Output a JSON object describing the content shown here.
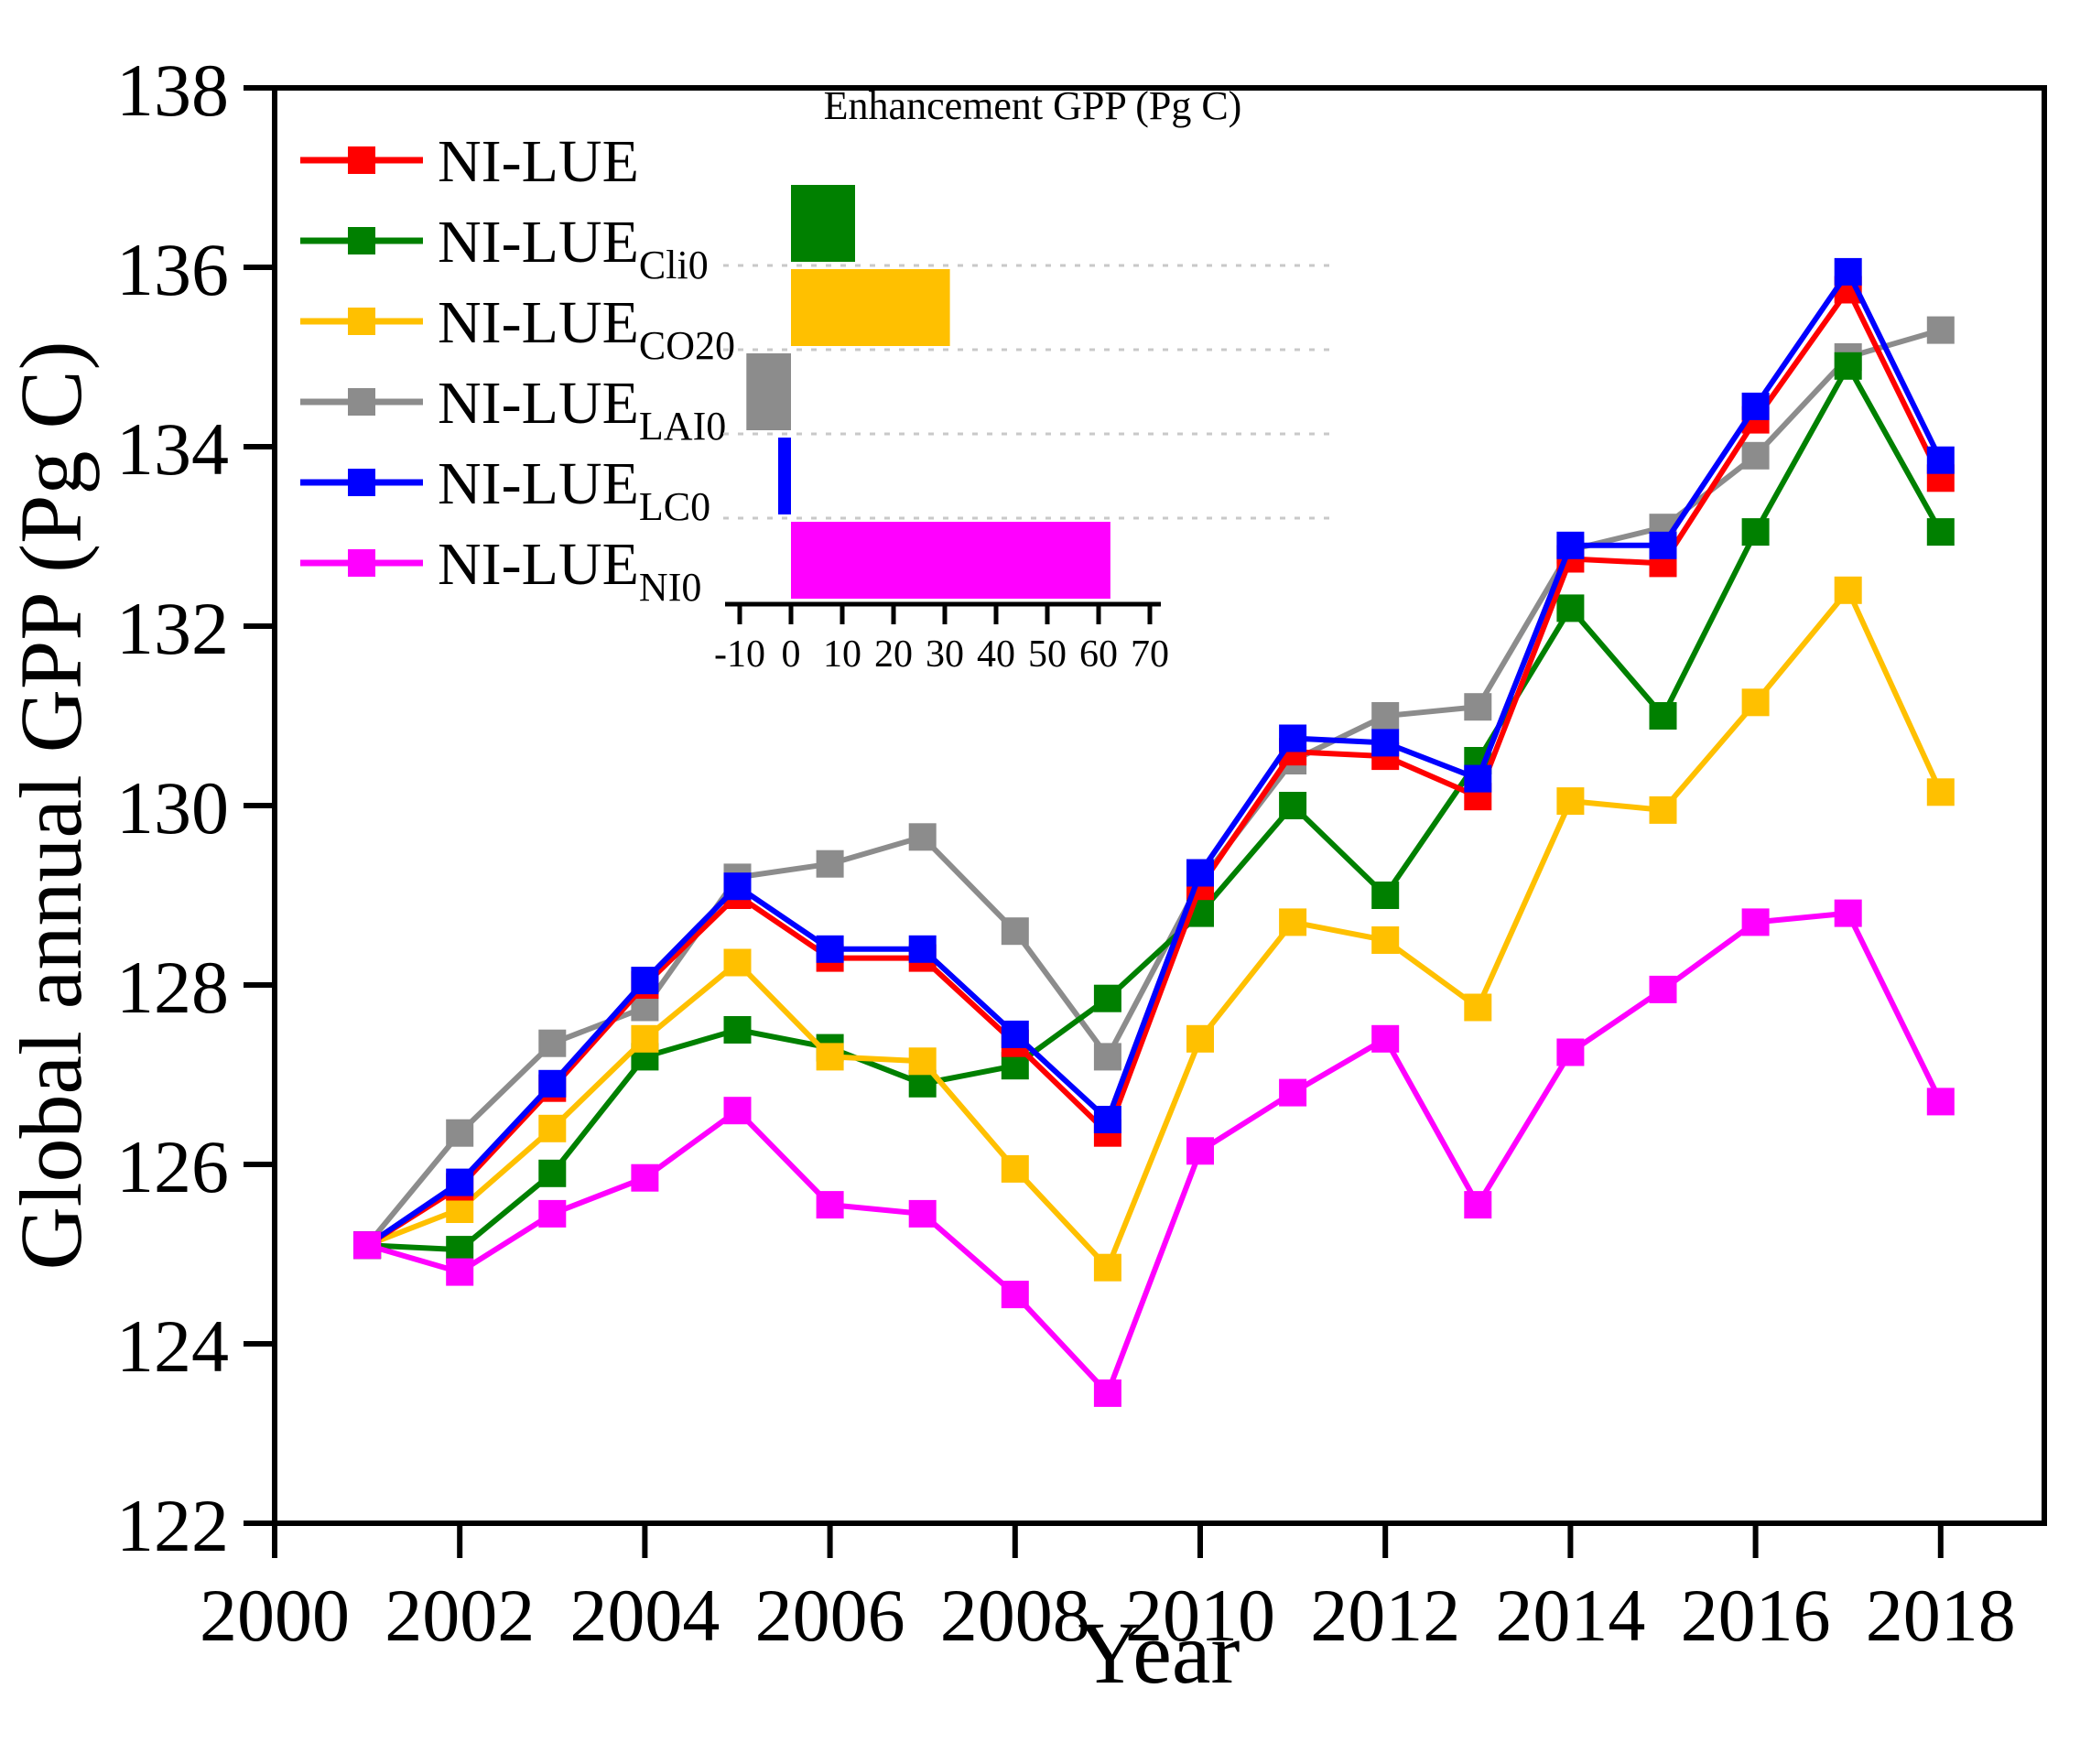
{
  "figure": {
    "x_label": "Year",
    "y_label": "Global annual GPP (Pg C)",
    "inset_title": "Enhancement GPP (Pg C)"
  },
  "colors": {
    "red": "#FF0000",
    "green": "#008000",
    "gold": "#FFC000",
    "gray": "#8C8C8C",
    "blue": "#0000FF",
    "magenta": "#FF00FF",
    "axis": "#000000",
    "inset_separator": "#c9c9c9"
  },
  "chart_data": {
    "type": "line",
    "title": "",
    "xlabel": "Year",
    "ylabel": "Global annual GPP (Pg C)",
    "x": [
      2001,
      2002,
      2003,
      2004,
      2005,
      2006,
      2007,
      2008,
      2009,
      2010,
      2011,
      2012,
      2013,
      2014,
      2015,
      2016,
      2017,
      2018
    ],
    "xlim": [
      2000,
      2019.1
    ],
    "ylim": [
      122,
      138
    ],
    "x_ticks": [
      2000,
      2002,
      2004,
      2006,
      2008,
      2010,
      2012,
      2014,
      2016,
      2018
    ],
    "y_ticks": [
      122,
      124,
      126,
      128,
      130,
      132,
      134,
      136,
      138
    ],
    "grid": false,
    "legend_position": "upper-left-inside",
    "series": [
      {
        "name": "NI-LUE",
        "sub": "",
        "color": "red",
        "values": [
          125.1,
          125.75,
          126.85,
          128.0,
          129.0,
          128.3,
          128.3,
          127.35,
          126.35,
          129.1,
          130.6,
          130.55,
          130.1,
          132.75,
          132.7,
          134.3,
          135.75,
          133.65
        ]
      },
      {
        "name": "NI-LUE",
        "sub": "Cli0",
        "color": "green",
        "values": [
          125.1,
          125.05,
          125.9,
          127.2,
          127.5,
          127.3,
          126.9,
          127.1,
          127.85,
          128.8,
          130.0,
          129.0,
          130.5,
          132.2,
          131.0,
          133.05,
          134.9,
          133.05
        ]
      },
      {
        "name": "NI-LUE",
        "sub": "CO20",
        "color": "gold",
        "values": [
          125.1,
          125.5,
          126.4,
          127.4,
          128.25,
          127.2,
          127.15,
          125.95,
          124.85,
          127.4,
          128.7,
          128.5,
          127.75,
          130.05,
          129.95,
          131.15,
          132.4,
          130.15
        ]
      },
      {
        "name": "NI-LUE",
        "sub": "LAI0",
        "color": "gray",
        "values": [
          125.1,
          126.35,
          127.35,
          127.75,
          129.2,
          129.35,
          129.65,
          128.6,
          127.2,
          129.15,
          130.5,
          131.0,
          131.1,
          132.85,
          133.1,
          133.9,
          135.0,
          135.3
        ]
      },
      {
        "name": "NI-LUE",
        "sub": "LC0",
        "color": "blue",
        "values": [
          125.1,
          125.8,
          126.9,
          128.05,
          129.1,
          128.4,
          128.4,
          127.45,
          126.5,
          129.25,
          130.75,
          130.7,
          130.3,
          132.9,
          132.9,
          134.45,
          135.95,
          133.85
        ]
      },
      {
        "name": "NI-LUE",
        "sub": "NI0",
        "color": "magenta",
        "values": [
          125.1,
          124.8,
          125.45,
          125.85,
          126.6,
          125.55,
          125.45,
          124.55,
          123.45,
          126.15,
          126.8,
          127.4,
          125.55,
          127.25,
          127.95,
          128.7,
          128.8,
          126.7
        ]
      }
    ],
    "inset": {
      "type": "bar",
      "orientation": "horizontal",
      "title": "Enhancement GPP (Pg C)",
      "xlim": [
        -11,
        72
      ],
      "x_ticks": [
        -10,
        0,
        10,
        20,
        30,
        40,
        50,
        60,
        70
      ],
      "bars": [
        {
          "label": "Cli0",
          "value": 12.5,
          "color": "green"
        },
        {
          "label": "CO20",
          "value": 31.0,
          "color": "gold"
        },
        {
          "label": "LAI0",
          "value": -8.7,
          "color": "gray"
        },
        {
          "label": "LC0",
          "value": -2.5,
          "color": "blue"
        },
        {
          "label": "NI0",
          "value": 62.3,
          "color": "magenta"
        }
      ]
    }
  }
}
